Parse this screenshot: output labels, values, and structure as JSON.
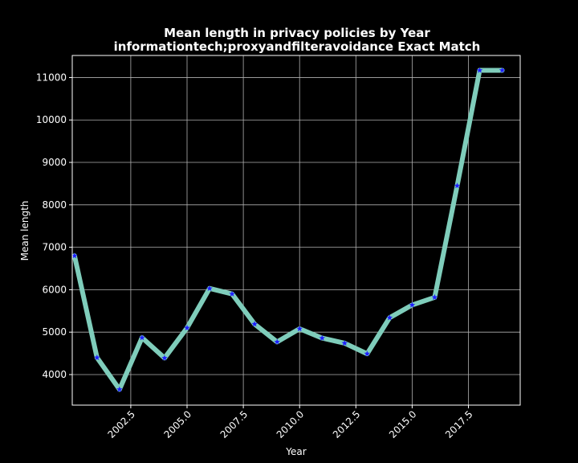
{
  "chart_data": {
    "type": "line",
    "title": "Mean length in privacy policies by Year",
    "subtitle": "informationtech;proxyandfilteravoidance Exact Match",
    "xlabel": "Year",
    "ylabel": "Mean length",
    "xlim": [
      1999.9,
      2019.8
    ],
    "ylim": [
      3280,
      11520
    ],
    "xticks": [
      2002.5,
      2005.0,
      2007.5,
      2010.0,
      2012.5,
      2015.0,
      2017.5
    ],
    "xtick_labels": [
      "2002.5",
      "2005.0",
      "2007.5",
      "2010.0",
      "2012.5",
      "2015.0",
      "2017.5"
    ],
    "yticks": [
      4000,
      5000,
      6000,
      7000,
      8000,
      9000,
      10000,
      11000
    ],
    "ytick_labels": [
      "4000",
      "5000",
      "6000",
      "7000",
      "8000",
      "9000",
      "10000",
      "11000"
    ],
    "grid": true,
    "line_color": "#7fcdbb",
    "marker_color": "#1f1fff",
    "marker": "star",
    "series": [
      {
        "x": [
          2000,
          2001,
          2002,
          2003,
          2004,
          2005,
          2006,
          2007,
          2008,
          2009,
          2010,
          2011,
          2012,
          2013,
          2014,
          2015,
          2016,
          2017,
          2018,
          2019
        ],
        "values": [
          6800,
          4400,
          3650,
          4870,
          4390,
          5100,
          6030,
          5900,
          5190,
          4770,
          5080,
          4860,
          4740,
          4490,
          5340,
          5640,
          5820,
          8450,
          11170,
          11170
        ]
      }
    ]
  }
}
